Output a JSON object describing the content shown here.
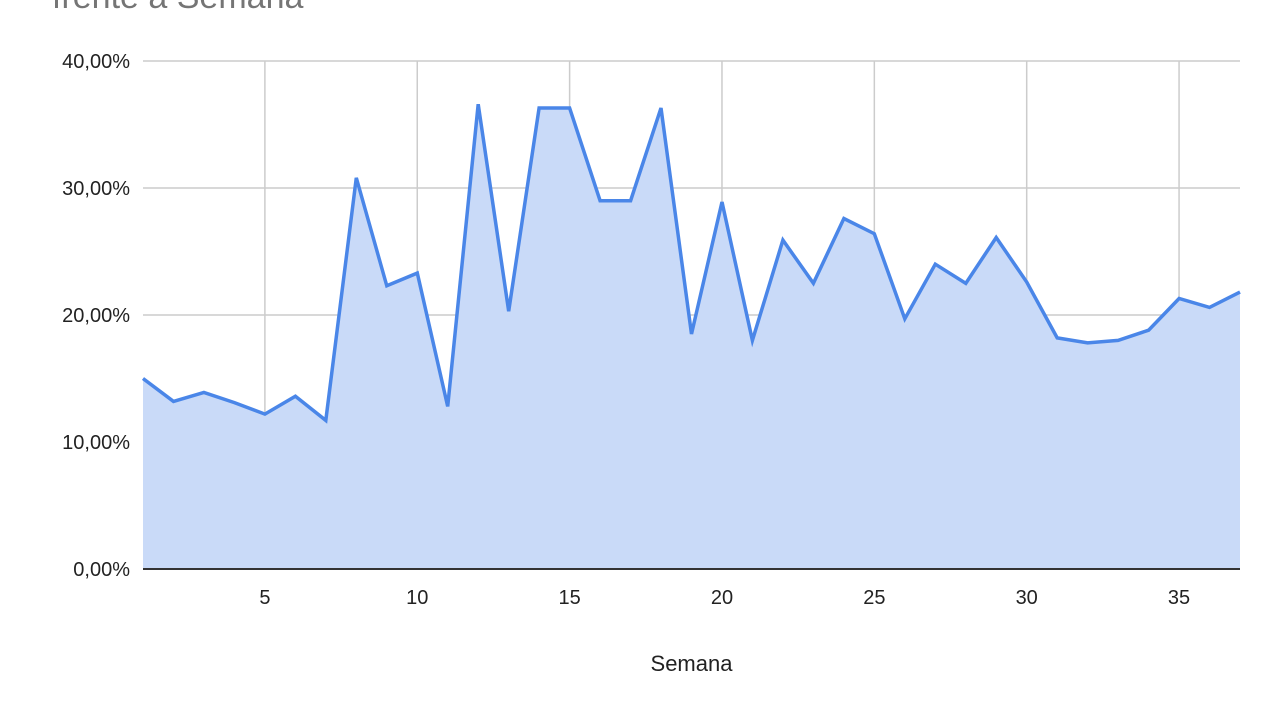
{
  "chart_data": {
    "type": "area",
    "title": "frente a Semana",
    "xlabel": "Semana",
    "ylabel": "",
    "xlim": [
      1,
      37
    ],
    "ylim": [
      0,
      40
    ],
    "x_ticks": [
      5,
      10,
      15,
      20,
      25,
      30,
      35
    ],
    "y_ticks": [
      0,
      10,
      20,
      30,
      40
    ],
    "y_tick_labels": [
      "0,00%",
      "10,00%",
      "20,00%",
      "30,00%",
      "40,00%"
    ],
    "grid": true,
    "colors": {
      "line": "#4a86e8",
      "fill": "#c9daf8",
      "grid": "#cccccc",
      "axis": "#333333"
    },
    "series": [
      {
        "x": [
          1,
          2,
          3,
          4,
          5,
          6,
          7,
          8,
          9,
          10,
          11,
          12,
          13,
          14,
          15,
          16,
          17,
          18,
          19,
          20,
          21,
          22,
          23,
          24,
          25,
          26,
          27,
          28,
          29,
          30,
          31,
          32,
          33,
          34,
          35,
          36,
          37
        ],
        "values": [
          15.0,
          13.2,
          13.9,
          13.1,
          12.2,
          13.6,
          11.7,
          30.8,
          22.3,
          23.3,
          12.8,
          36.6,
          20.3,
          36.3,
          36.3,
          29.0,
          29.0,
          36.3,
          18.5,
          28.9,
          18.0,
          25.9,
          22.5,
          27.6,
          26.4,
          19.7,
          24.0,
          22.5,
          26.1,
          22.6,
          18.2,
          17.8,
          18.0,
          18.8,
          21.3,
          20.6,
          21.8
        ]
      }
    ]
  }
}
